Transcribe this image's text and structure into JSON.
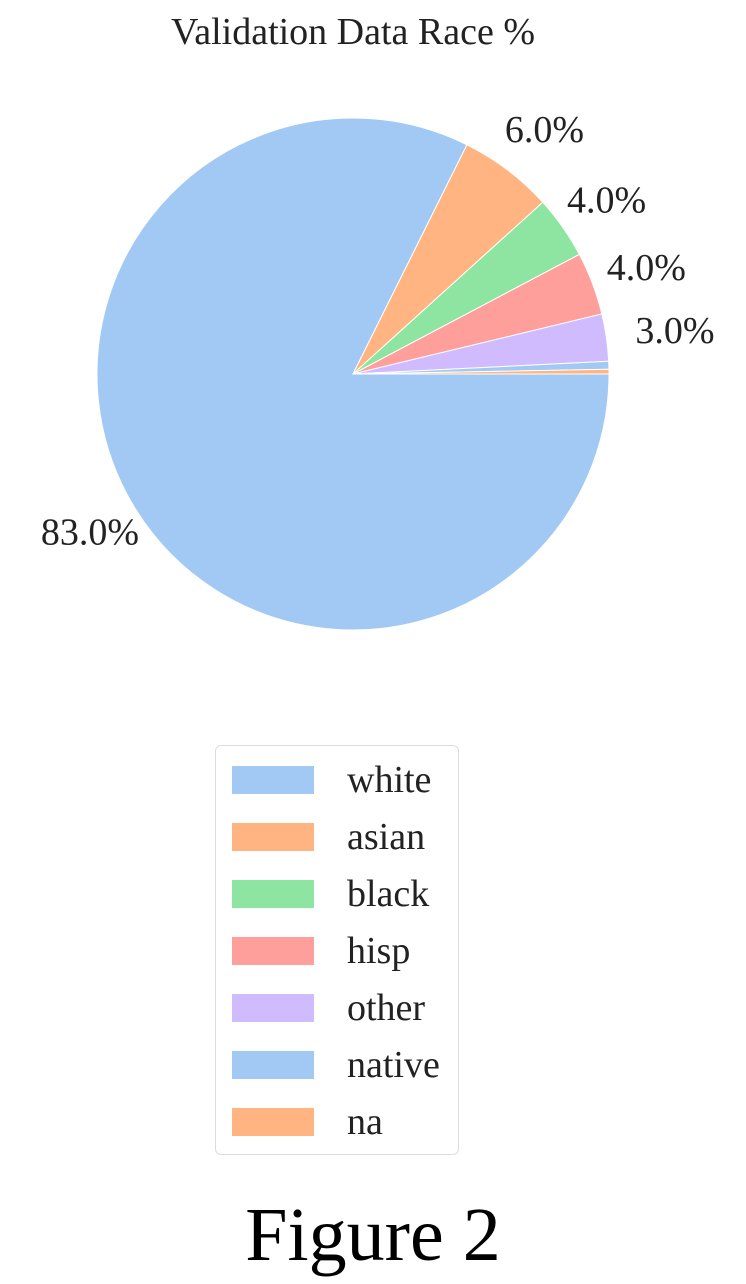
{
  "figure_caption": "Figure 2",
  "chart_data": {
    "type": "pie",
    "title": "Validation Data Race %",
    "categories": [
      "white",
      "asian",
      "black",
      "hisp",
      "other",
      "native",
      "na"
    ],
    "values": [
      83.0,
      6.0,
      4.0,
      4.0,
      3.0,
      0.5,
      0.3
    ],
    "slice_labels": [
      "83.0%",
      "6.0%",
      "4.0%",
      "4.0%",
      "3.0%",
      "",
      ""
    ],
    "colors": [
      "#a1c9f4",
      "#ffb482",
      "#8de5a1",
      "#ff9f9b",
      "#d0bbff",
      "#a1c9f4",
      "#ffb482"
    ],
    "start_angle_deg": 0,
    "direction": "clockwise",
    "legend": {
      "placement": "bottom-center",
      "entries": [
        "white",
        "asian",
        "black",
        "hisp",
        "other",
        "native",
        "na"
      ]
    }
  }
}
